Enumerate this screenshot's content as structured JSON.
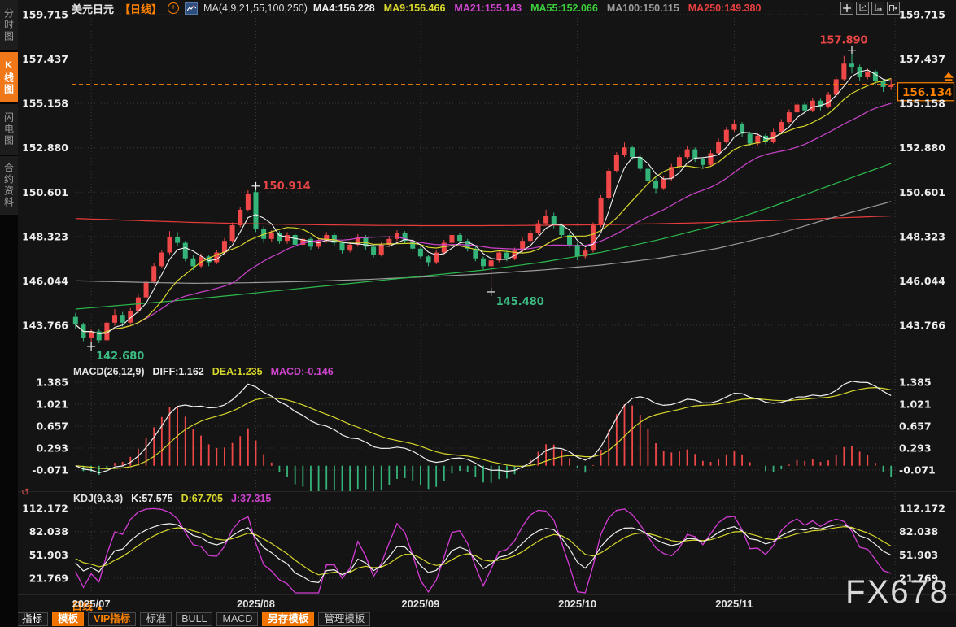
{
  "app": {
    "watermark": "FX678"
  },
  "icons": {
    "plus": "+",
    "period_arrow": "▲",
    "panel_settings": "↺"
  },
  "sidebar": {
    "tabs": [
      {
        "label": "分时图",
        "active": false
      },
      {
        "label": "K线图",
        "active": true
      },
      {
        "label": "闪电图",
        "active": false
      },
      {
        "label": "合约资料",
        "active": false
      }
    ]
  },
  "header": {
    "symbol": "美元日元",
    "period": "【日线】",
    "ma_title": "MA(4,9,21,55,100,250)",
    "ma_values": [
      {
        "text": "MA4:156.228",
        "color": "#ededed"
      },
      {
        "text": "MA9:156.466",
        "color": "#d6d62c"
      },
      {
        "text": "MA21:155.143",
        "color": "#cc44cc"
      },
      {
        "text": "MA55:152.066",
        "color": "#3ccf3c"
      },
      {
        "text": "MA100:150.115",
        "color": "#9a9a9a"
      },
      {
        "text": "MA250:149.380",
        "color": "#e84040"
      }
    ],
    "toolbar_icons": [
      "move-tool-icon",
      "price-axis-icon",
      "time-axis-icon",
      "detach-window-icon"
    ]
  },
  "macd_panel": {
    "parts": [
      {
        "text": "MACD(26,12,9)",
        "color": "#e2e2e2"
      },
      {
        "text": "DIFF:1.162",
        "color": "#ededed"
      },
      {
        "text": "DEA:1.235",
        "color": "#d6d62c"
      },
      {
        "text": "MACD:-0.146",
        "color": "#cc44cc"
      }
    ]
  },
  "kdj_panel": {
    "parts": [
      {
        "text": "KDJ(9,3,3)",
        "color": "#e2e2e2"
      },
      {
        "text": "K:57.575",
        "color": "#ededed"
      },
      {
        "text": "D:67.705",
        "color": "#d6d62c"
      },
      {
        "text": "J:37.315",
        "color": "#cc44cc"
      }
    ]
  },
  "time_axis": {
    "period_label": "日线",
    "months": [
      {
        "label": "2025/07",
        "candle_index": 2
      },
      {
        "label": "2025/08",
        "candle_index": 23
      },
      {
        "label": "2025/09",
        "candle_index": 44
      },
      {
        "label": "2025/10",
        "candle_index": 64
      },
      {
        "label": "2025/11",
        "candle_index": 84
      }
    ]
  },
  "bottom_toolbar": {
    "tabs": [
      {
        "label": "指标",
        "style": "bright"
      },
      {
        "label": "模板",
        "style": "active"
      },
      {
        "label": "VIP指标",
        "style": "vip"
      },
      {
        "label": "标准",
        "style": "plain"
      },
      {
        "label": "BULL",
        "style": "plain"
      },
      {
        "label": "MACD",
        "style": "plain"
      },
      {
        "label": "另存模板",
        "style": "active"
      },
      {
        "label": "管理模板",
        "style": "plain"
      }
    ]
  },
  "colors": {
    "up": "#f04848",
    "down": "#35b47a",
    "ma4": "#f0f0f0",
    "ma9": "#d6d62c",
    "ma21": "#cc44cc",
    "ma55": "#2db84d",
    "ma100": "#9a9a9a",
    "ma250": "#e83c3c",
    "accent_orange": "#ff8300",
    "grid": "#3a3a3a",
    "axis_text": "#ededed",
    "annotation_up": "#e84545",
    "annotation_down": "#3bbb82",
    "diff": "#f0f0f0",
    "dea": "#d6d62c",
    "k": "#f0f0f0",
    "d": "#d6d62c",
    "j": "#d43cd4",
    "separator": "#272727"
  },
  "chart_data": {
    "type": "candlestick",
    "symbol": "美元日元",
    "period": "日线",
    "y_ticks_main": [
      159.715,
      157.437,
      155.158,
      152.88,
      150.601,
      148.323,
      146.044,
      143.766
    ],
    "current_price": 156.134,
    "candles": [
      [
        144.2,
        144.4,
        143.6,
        143.8
      ],
      [
        143.8,
        143.9,
        142.95,
        143.1
      ],
      [
        143.1,
        143.55,
        142.68,
        143.45
      ],
      [
        143.45,
        143.6,
        142.85,
        143.0
      ],
      [
        143.0,
        144.0,
        142.9,
        143.9
      ],
      [
        143.9,
        144.6,
        143.75,
        144.3
      ],
      [
        144.3,
        144.45,
        143.7,
        143.9
      ],
      [
        143.9,
        144.65,
        143.8,
        144.5
      ],
      [
        144.5,
        145.35,
        144.4,
        145.2
      ],
      [
        145.2,
        146.15,
        145.1,
        146.0
      ],
      [
        146.0,
        146.95,
        145.9,
        146.8
      ],
      [
        146.8,
        147.65,
        146.7,
        147.5
      ],
      [
        147.5,
        148.6,
        147.4,
        148.3
      ],
      [
        148.3,
        148.55,
        147.85,
        148.0
      ],
      [
        148.0,
        148.1,
        147.05,
        147.2
      ],
      [
        147.2,
        147.35,
        146.6,
        146.8
      ],
      [
        146.8,
        147.45,
        146.7,
        147.3
      ],
      [
        147.3,
        147.4,
        146.8,
        147.0
      ],
      [
        147.0,
        147.65,
        146.9,
        147.5
      ],
      [
        147.5,
        148.25,
        147.4,
        148.1
      ],
      [
        148.1,
        149.05,
        148.0,
        148.9
      ],
      [
        148.9,
        149.85,
        148.8,
        149.7
      ],
      [
        149.7,
        150.7,
        149.6,
        150.5
      ],
      [
        150.6,
        150.914,
        148.55,
        148.7
      ],
      [
        148.7,
        148.85,
        148.0,
        148.2
      ],
      [
        148.2,
        148.65,
        148.05,
        148.5
      ],
      [
        148.5,
        148.6,
        147.95,
        148.1
      ],
      [
        148.1,
        148.55,
        147.95,
        148.4
      ],
      [
        148.4,
        148.5,
        147.75,
        147.9
      ],
      [
        147.9,
        148.35,
        147.8,
        148.2
      ],
      [
        148.2,
        148.3,
        147.65,
        147.8
      ],
      [
        147.8,
        148.25,
        147.7,
        148.1
      ],
      [
        148.1,
        148.55,
        148.0,
        148.4
      ],
      [
        148.4,
        148.5,
        147.85,
        148.0
      ],
      [
        148.0,
        148.1,
        147.45,
        147.6
      ],
      [
        147.6,
        148.05,
        147.5,
        147.9
      ],
      [
        147.9,
        148.45,
        147.8,
        148.3
      ],
      [
        148.3,
        148.4,
        147.65,
        147.8
      ],
      [
        147.8,
        147.9,
        147.25,
        147.4
      ],
      [
        147.4,
        148.05,
        147.3,
        147.9
      ],
      [
        147.9,
        148.35,
        147.8,
        148.2
      ],
      [
        148.2,
        148.65,
        148.1,
        148.5
      ],
      [
        148.5,
        148.6,
        147.95,
        148.1
      ],
      [
        148.1,
        148.2,
        147.55,
        147.7
      ],
      [
        147.7,
        147.8,
        147.15,
        147.3
      ],
      [
        147.3,
        147.4,
        146.8,
        147.0
      ],
      [
        147.0,
        147.65,
        146.9,
        147.5
      ],
      [
        147.5,
        148.15,
        147.4,
        148.0
      ],
      [
        148.0,
        148.55,
        147.9,
        148.4
      ],
      [
        148.4,
        148.5,
        147.95,
        148.1
      ],
      [
        148.1,
        148.2,
        147.55,
        147.7
      ],
      [
        147.7,
        147.8,
        147.05,
        147.2
      ],
      [
        147.2,
        147.3,
        146.6,
        146.8
      ],
      [
        146.8,
        147.25,
        145.48,
        147.1
      ],
      [
        147.1,
        147.65,
        147.0,
        147.5
      ],
      [
        147.5,
        147.6,
        147.05,
        147.2
      ],
      [
        147.2,
        147.75,
        147.1,
        147.6
      ],
      [
        147.6,
        148.25,
        147.5,
        148.1
      ],
      [
        148.1,
        148.65,
        148.0,
        148.5
      ],
      [
        148.5,
        149.15,
        148.4,
        149.0
      ],
      [
        149.0,
        149.7,
        148.9,
        149.4
      ],
      [
        149.4,
        149.55,
        148.75,
        148.9
      ],
      [
        148.9,
        149.0,
        148.25,
        148.4
      ],
      [
        148.4,
        148.5,
        147.75,
        147.9
      ],
      [
        147.9,
        148.0,
        147.1,
        147.3
      ],
      [
        147.3,
        147.75,
        147.2,
        147.6
      ],
      [
        147.6,
        149.05,
        147.5,
        148.9
      ],
      [
        148.9,
        150.45,
        148.8,
        150.3
      ],
      [
        150.3,
        151.85,
        150.2,
        151.7
      ],
      [
        151.7,
        152.65,
        151.6,
        152.5
      ],
      [
        152.5,
        153.15,
        152.4,
        152.9
      ],
      [
        152.9,
        153.0,
        152.25,
        152.4
      ],
      [
        152.4,
        152.5,
        151.65,
        151.8
      ],
      [
        151.8,
        151.9,
        151.05,
        151.2
      ],
      [
        151.2,
        151.35,
        150.55,
        150.8
      ],
      [
        150.8,
        151.45,
        150.7,
        151.3
      ],
      [
        151.3,
        152.05,
        151.2,
        151.9
      ],
      [
        151.9,
        152.55,
        151.8,
        152.4
      ],
      [
        152.4,
        152.95,
        152.3,
        152.8
      ],
      [
        152.8,
        152.9,
        152.15,
        152.3
      ],
      [
        152.3,
        152.4,
        151.8,
        152.0
      ],
      [
        152.0,
        152.75,
        151.9,
        152.6
      ],
      [
        152.6,
        153.35,
        152.5,
        153.2
      ],
      [
        153.2,
        153.95,
        153.1,
        153.8
      ],
      [
        153.8,
        154.3,
        153.7,
        154.1
      ],
      [
        154.1,
        154.2,
        153.45,
        153.6
      ],
      [
        153.6,
        153.7,
        152.95,
        153.1
      ],
      [
        153.1,
        153.65,
        153.0,
        153.5
      ],
      [
        153.5,
        153.6,
        153.05,
        153.2
      ],
      [
        153.2,
        153.85,
        153.1,
        153.7
      ],
      [
        153.7,
        154.35,
        153.6,
        154.2
      ],
      [
        154.2,
        154.85,
        154.1,
        154.7
      ],
      [
        154.7,
        155.25,
        154.6,
        155.1
      ],
      [
        155.1,
        155.2,
        154.6,
        154.8
      ],
      [
        154.8,
        155.45,
        154.7,
        155.3
      ],
      [
        155.3,
        155.4,
        154.8,
        155.0
      ],
      [
        155.0,
        155.75,
        154.9,
        155.6
      ],
      [
        155.6,
        156.55,
        155.5,
        156.4
      ],
      [
        156.4,
        157.6,
        156.3,
        157.2
      ],
      [
        157.2,
        157.89,
        156.7,
        157.0
      ],
      [
        157.0,
        157.15,
        156.3,
        156.5
      ],
      [
        156.5,
        156.95,
        156.4,
        156.8
      ],
      [
        156.8,
        156.9,
        156.1,
        156.3
      ],
      [
        156.3,
        156.4,
        155.75,
        156.0
      ],
      [
        156.0,
        156.45,
        155.85,
        156.134
      ]
    ],
    "overlays": {
      "ma_windows": [
        4,
        9,
        21
      ],
      "ma55_points": [
        144.6,
        144.85,
        145.1,
        145.4,
        145.7,
        146.0,
        146.3,
        146.6,
        147.0,
        147.5,
        148.15,
        148.9,
        149.9,
        151.0,
        152.07
      ],
      "ma100_points": [
        146.05,
        145.98,
        145.92,
        145.95,
        146.02,
        146.12,
        146.25,
        146.4,
        146.6,
        146.85,
        147.2,
        147.7,
        148.4,
        149.3,
        150.12
      ],
      "ma250_points": [
        149.25,
        149.15,
        149.05,
        148.98,
        148.93,
        148.9,
        148.88,
        148.88,
        148.9,
        148.93,
        148.98,
        149.05,
        149.15,
        149.27,
        149.38
      ]
    },
    "annotations": [
      {
        "candle_index": 2,
        "value": 142.68,
        "label": "142.680",
        "color_key": "annotation_down",
        "position": "below"
      },
      {
        "candle_index": 23,
        "value": 150.914,
        "label": "150.914",
        "color_key": "annotation_up",
        "position": "right"
      },
      {
        "candle_index": 53,
        "value": 145.48,
        "label": "145.480",
        "color_key": "annotation_down",
        "position": "below"
      },
      {
        "candle_index": 99,
        "value": 157.89,
        "label": "157.890",
        "color_key": "annotation_up",
        "position": "above"
      }
    ],
    "sub_panels": [
      {
        "name": "MACD",
        "params": [
          26,
          12,
          9
        ],
        "y_ticks": [
          1.385,
          1.021,
          0.657,
          0.293,
          -0.071
        ],
        "values": {
          "diff": 1.162,
          "dea": 1.235,
          "macd": -0.146
        }
      },
      {
        "name": "KDJ",
        "params": [
          9,
          3,
          3
        ],
        "y_ticks": [
          112.172,
          82.038,
          51.903,
          21.769
        ],
        "values": {
          "k": 57.575,
          "d": 67.705,
          "j": 37.315
        }
      }
    ]
  }
}
